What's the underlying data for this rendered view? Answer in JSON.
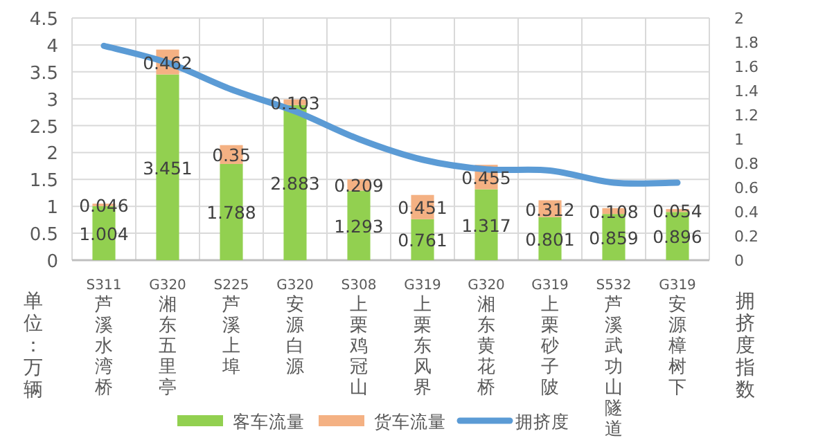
{
  "chart_data": {
    "type": "bar",
    "stacked": true,
    "ylabel": "单位：万辆",
    "y2label": "拥挤度指数",
    "categories": [
      "S311 芦溪水湾桥",
      "G320 湘东五里亭",
      "S225 芦溪上埠",
      "G320 安源白源",
      "S308 上栗鸡冠山",
      "G319 上栗东风界",
      "G320 湘东黄花桥",
      "G319 上栗砂子陂",
      "S532 芦溪武功山隧道",
      "G319 安源樟树下"
    ],
    "series": [
      {
        "name": "客车流量",
        "color": "#92d050",
        "values": [
          1.004,
          3.451,
          1.788,
          2.883,
          1.293,
          0.761,
          1.317,
          0.801,
          0.859,
          0.896
        ],
        "value_labels": [
          "1.004",
          "3.451",
          "1.788",
          "2.883",
          "1.293",
          "0.761",
          "1.317",
          "0.801",
          "0.859",
          "0.896"
        ]
      },
      {
        "name": "货车流量",
        "color": "#f4b183",
        "values": [
          0.046,
          0.462,
          0.35,
          0.103,
          0.209,
          0.451,
          0.455,
          0.312,
          0.108,
          0.054
        ],
        "value_labels": [
          "0.046",
          "0.462",
          "0.35",
          "0.103",
          "0.209",
          "0.451",
          "0.455",
          "0.312",
          "0.108",
          "0.054"
        ]
      },
      {
        "name": "拥挤度",
        "type": "line",
        "axis": "y2",
        "color": "#5b9bd5",
        "values": [
          1.77,
          1.63,
          1.41,
          1.23,
          1.0,
          0.83,
          0.75,
          0.74,
          0.64,
          0.64
        ]
      }
    ],
    "ylim": [
      0,
      4.5
    ],
    "yticks": [
      0,
      0.5,
      1,
      1.5,
      2,
      2.5,
      3,
      3.5,
      4,
      4.5
    ],
    "y2lim": [
      0,
      2
    ],
    "y2ticks": [
      0,
      0.2,
      0.4,
      0.6,
      0.8,
      1,
      1.2,
      1.4,
      1.6,
      1.8,
      2
    ],
    "grid": true,
    "legend": "bottom",
    "marker": "none"
  }
}
